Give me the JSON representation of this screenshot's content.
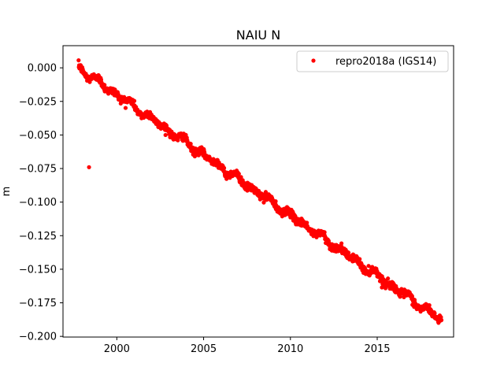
{
  "chart_data": {
    "type": "scatter",
    "title": "NAIU N",
    "xlabel": "",
    "ylabel": "m",
    "xlim": [
      1996.9,
      2019.4
    ],
    "ylim": [
      -0.2005,
      0.0165
    ],
    "xticks": [
      2000,
      2005,
      2010,
      2015
    ],
    "yticks": [
      0.0,
      -0.025,
      -0.05,
      -0.075,
      -0.1,
      -0.125,
      -0.15,
      -0.175,
      -0.2
    ],
    "ytick_labels": [
      "0.000",
      "−0.025",
      "−0.050",
      "−0.075",
      "−0.100",
      "−0.125",
      "−0.150",
      "−0.175",
      "−0.200"
    ],
    "grid": false,
    "legend_position": "upper right",
    "marker_color": "#ff0000",
    "series": [
      {
        "name": "repro2018a (IGS14)",
        "color": "#ff0000",
        "trend": {
          "x_start": 1997.8,
          "y_start": 0.0,
          "x_end": 2018.7,
          "y_end": -0.188
        },
        "outliers": [
          {
            "x": 1998.4,
            "y": -0.074
          }
        ]
      }
    ]
  }
}
